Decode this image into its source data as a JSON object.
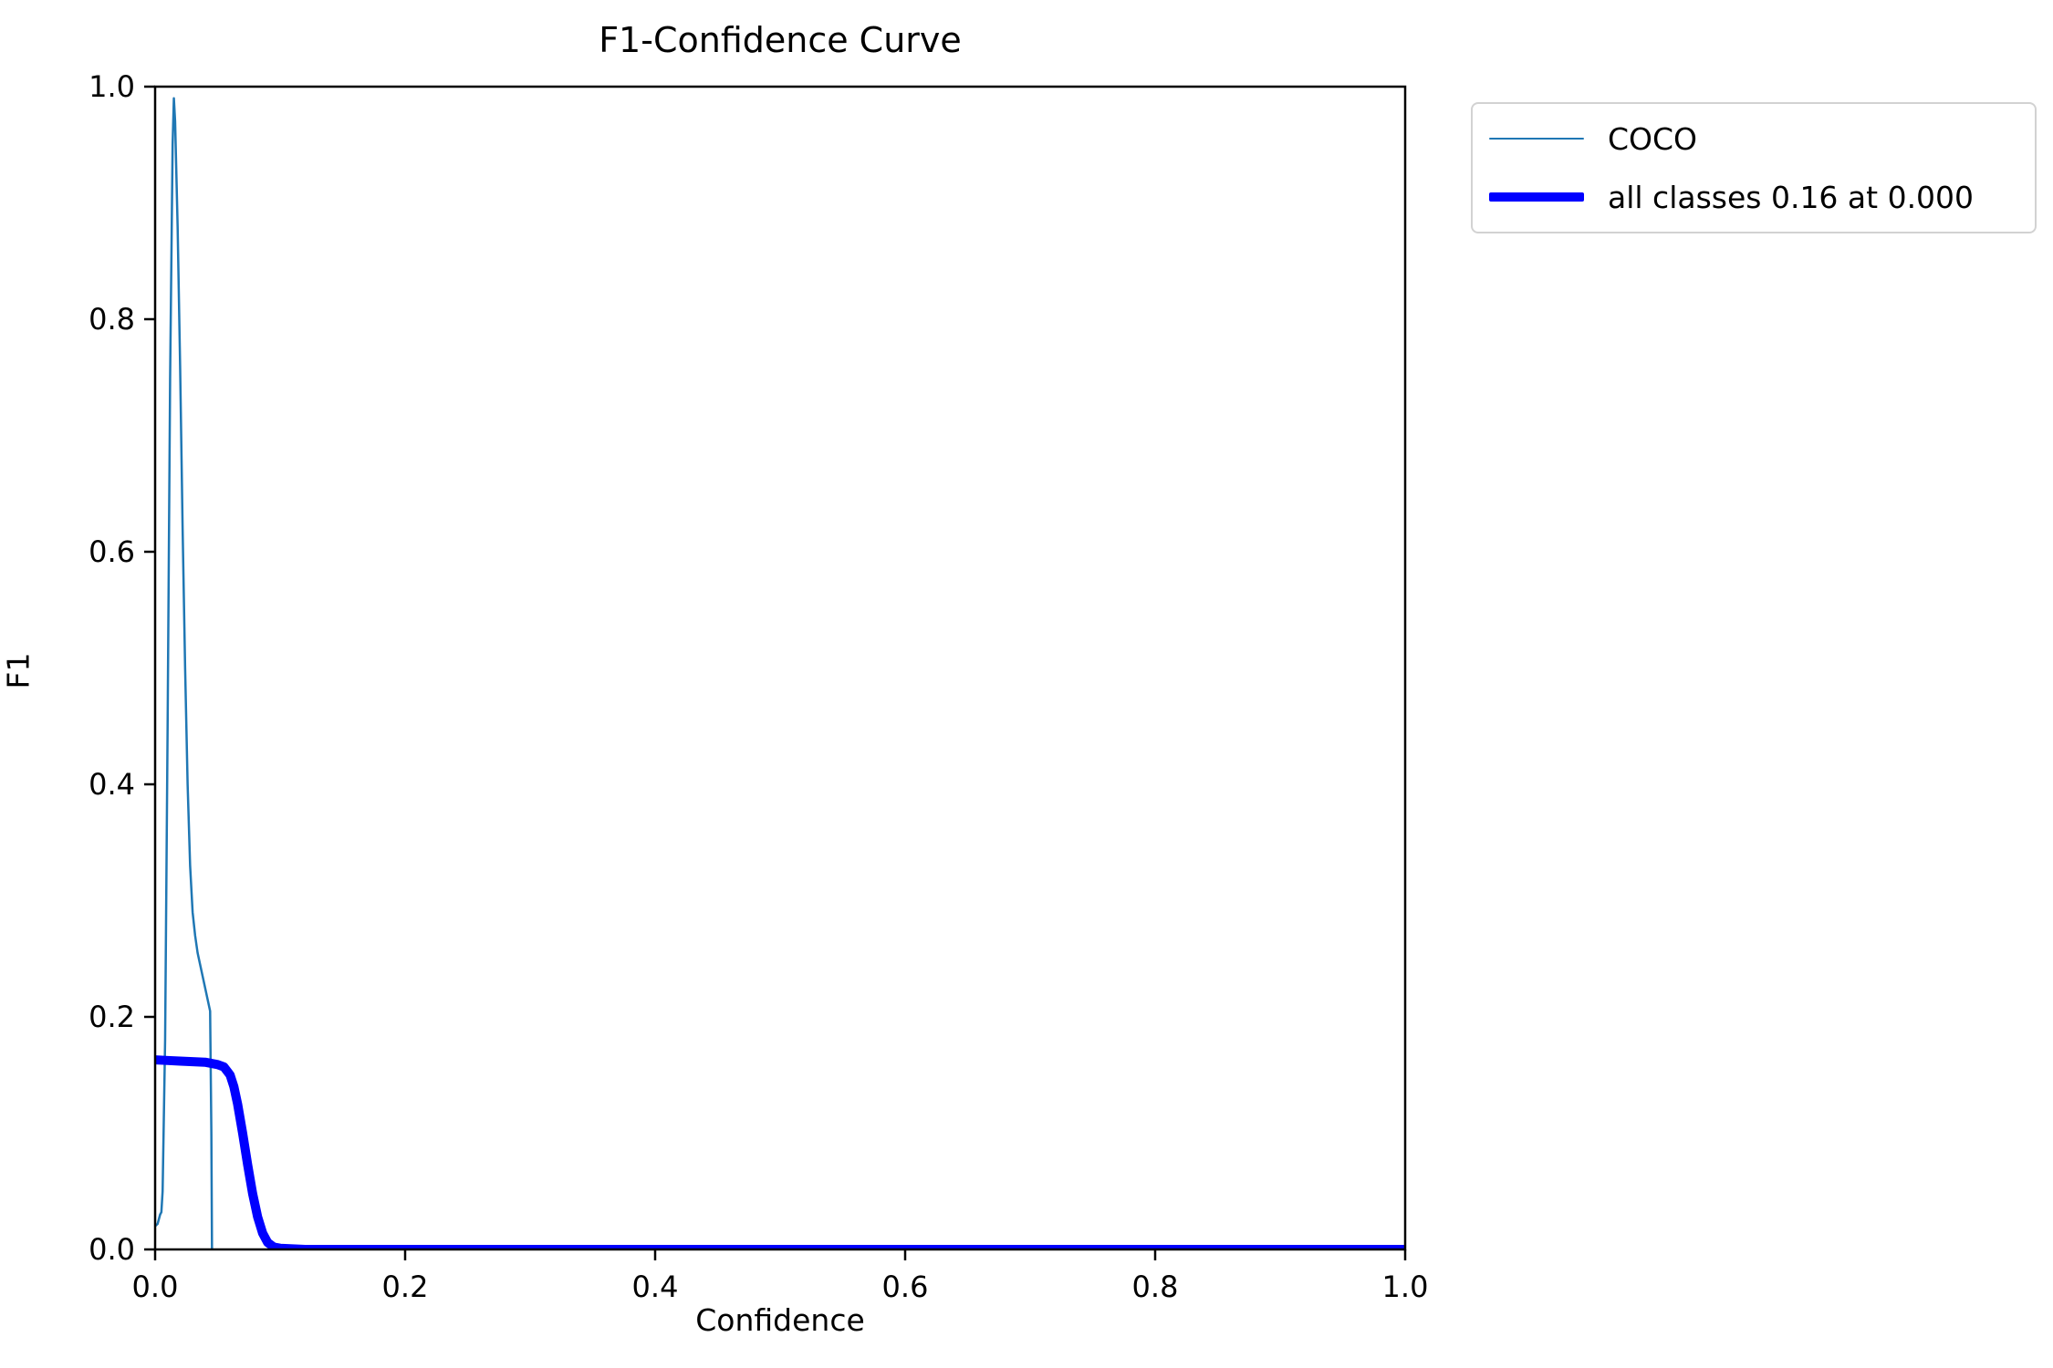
{
  "chart_data": {
    "type": "line",
    "title": "F1-Confidence Curve",
    "xlabel": "Confidence",
    "ylabel": "F1",
    "xlim": [
      0.0,
      1.0
    ],
    "ylim": [
      0.0,
      1.0
    ],
    "grid": false,
    "legend_position": "outside-upper-right",
    "x_ticks": {
      "values": [
        0.0,
        0.2,
        0.4,
        0.6,
        0.8,
        1.0
      ],
      "labels": [
        "0.0",
        "0.2",
        "0.4",
        "0.6",
        "0.8",
        "1.0"
      ]
    },
    "y_ticks": {
      "values": [
        0.0,
        0.2,
        0.4,
        0.6,
        0.8,
        1.0
      ],
      "labels": [
        "0.0",
        "0.2",
        "0.4",
        "0.6",
        "0.8",
        "1.0"
      ]
    },
    "series": [
      {
        "name": "COCO",
        "color": "#1f77b4",
        "line_width": 2.5,
        "points": [
          [
            0.0,
            0.02
          ],
          [
            0.002,
            0.022
          ],
          [
            0.004,
            0.03
          ],
          [
            0.005,
            0.032
          ],
          [
            0.006,
            0.05
          ],
          [
            0.008,
            0.18
          ],
          [
            0.01,
            0.45
          ],
          [
            0.012,
            0.75
          ],
          [
            0.014,
            0.95
          ],
          [
            0.015,
            0.99
          ],
          [
            0.016,
            0.97
          ],
          [
            0.018,
            0.88
          ],
          [
            0.02,
            0.76
          ],
          [
            0.022,
            0.62
          ],
          [
            0.024,
            0.5
          ],
          [
            0.026,
            0.4
          ],
          [
            0.028,
            0.33
          ],
          [
            0.03,
            0.29
          ],
          [
            0.032,
            0.27
          ],
          [
            0.034,
            0.255
          ],
          [
            0.036,
            0.245
          ],
          [
            0.038,
            0.235
          ],
          [
            0.04,
            0.225
          ],
          [
            0.042,
            0.215
          ],
          [
            0.044,
            0.205
          ],
          [
            0.045,
            0.1
          ],
          [
            0.0455,
            0.0
          ]
        ]
      },
      {
        "name": "all classes 0.16 at 0.000",
        "color": "#0000ff",
        "line_width": 10,
        "points": [
          [
            0.0,
            0.163
          ],
          [
            0.01,
            0.1625
          ],
          [
            0.02,
            0.162
          ],
          [
            0.03,
            0.1615
          ],
          [
            0.04,
            0.161
          ],
          [
            0.05,
            0.159
          ],
          [
            0.055,
            0.157
          ],
          [
            0.06,
            0.15
          ],
          [
            0.063,
            0.14
          ],
          [
            0.066,
            0.125
          ],
          [
            0.07,
            0.1
          ],
          [
            0.074,
            0.073
          ],
          [
            0.078,
            0.048
          ],
          [
            0.082,
            0.028
          ],
          [
            0.086,
            0.014
          ],
          [
            0.09,
            0.006
          ],
          [
            0.095,
            0.002
          ],
          [
            0.1,
            0.001
          ],
          [
            0.11,
            0.0005
          ],
          [
            0.12,
            0.0
          ],
          [
            0.5,
            0.0
          ],
          [
            1.0,
            0.0
          ]
        ]
      }
    ]
  },
  "legend": {
    "entries": [
      {
        "label": "COCO"
      },
      {
        "label": "all classes 0.16 at 0.000"
      }
    ]
  }
}
